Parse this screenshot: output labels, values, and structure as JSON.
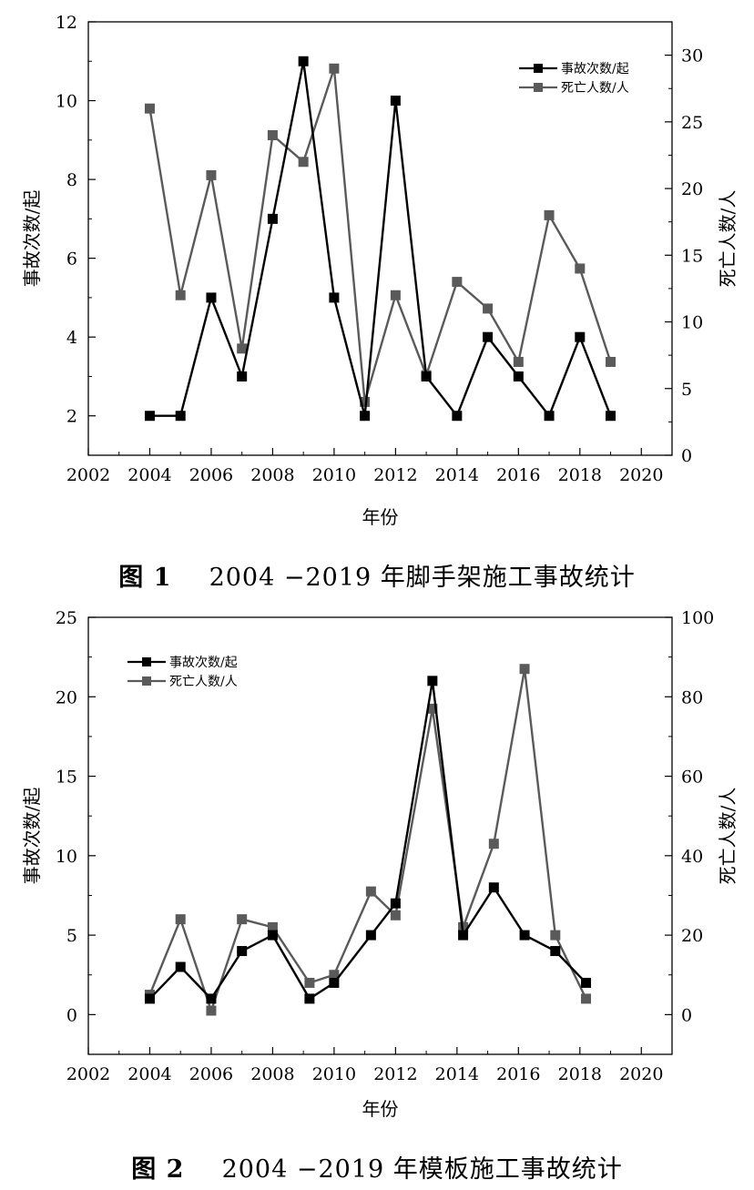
{
  "captions": [
    {
      "label": "图 1",
      "text": "2004 −2019 年脚手架施工事故统计"
    },
    {
      "label": "图 2",
      "text": "2004 −2019 年模板施工事故统计"
    }
  ],
  "chart_data": [
    {
      "type": "line",
      "xlabel": "年份",
      "ylabel": "事故次数/起",
      "y2label": "死亡人数/人",
      "xlim": [
        2002,
        2021
      ],
      "xticks": [
        2002,
        2004,
        2006,
        2008,
        2010,
        2012,
        2014,
        2016,
        2018,
        2020
      ],
      "ylim": [
        1,
        12
      ],
      "yticks": [
        2,
        4,
        6,
        8,
        10,
        12
      ],
      "y2lim": [
        0,
        32.5
      ],
      "y2ticks": [
        0,
        5,
        10,
        15,
        20,
        25,
        30
      ],
      "legend_position": "top-right",
      "series": [
        {
          "name": "事故次数/起",
          "axis": "left",
          "color": "#000000",
          "x": [
            2004,
            2005,
            2006,
            2007,
            2008,
            2009,
            2010,
            2011,
            2012,
            2013,
            2014,
            2015,
            2016,
            2017,
            2018,
            2019
          ],
          "y": [
            2,
            2,
            5,
            3,
            7,
            11,
            5,
            2,
            10,
            3,
            2,
            4,
            3,
            2,
            4,
            2
          ]
        },
        {
          "name": "死亡人数/人",
          "axis": "right",
          "color": "#5a5a5a",
          "x": [
            2004,
            2005,
            2006,
            2007,
            2008,
            2009,
            2010,
            2011,
            2012,
            2013,
            2014,
            2015,
            2016,
            2017,
            2018,
            2019
          ],
          "y": [
            26,
            12,
            21,
            8,
            24,
            22,
            29,
            4,
            12,
            6,
            13,
            11,
            7,
            18,
            14,
            7
          ]
        }
      ]
    },
    {
      "type": "line",
      "xlabel": "年份",
      "ylabel": "事故次数/起",
      "y2label": "死亡人数/人",
      "xlim": [
        2002,
        2021
      ],
      "xticks": [
        2002,
        2004,
        2006,
        2008,
        2010,
        2012,
        2014,
        2016,
        2018,
        2020
      ],
      "ylim": [
        -2.5,
        25
      ],
      "yticks": [
        0,
        5,
        10,
        15,
        20,
        25
      ],
      "y2lim": [
        -10,
        100
      ],
      "y2ticks": [
        0,
        20,
        40,
        60,
        80,
        100
      ],
      "legend_position": "top-left",
      "series": [
        {
          "name": "事故次数/起",
          "axis": "left",
          "color": "#000000",
          "x": [
            2004,
            2005,
            2006,
            2007,
            2008,
            2009.2,
            2010,
            2011.2,
            2012,
            2013.2,
            2014.2,
            2015.2,
            2016.2,
            2017.2,
            2018.2
          ],
          "y": [
            1,
            3,
            1,
            4,
            5,
            1,
            2,
            5,
            7,
            21,
            5,
            8,
            5,
            4,
            2
          ]
        },
        {
          "name": "死亡人数/人",
          "axis": "right",
          "color": "#5a5a5a",
          "x": [
            2004,
            2005,
            2006,
            2007,
            2008,
            2009.2,
            2010,
            2011.2,
            2012,
            2013.2,
            2014.2,
            2015.2,
            2016.2,
            2017.2,
            2018.2
          ],
          "y": [
            5,
            24,
            1,
            24,
            22,
            8,
            10,
            31,
            25,
            77,
            22,
            43,
            87,
            20,
            4
          ]
        }
      ]
    }
  ]
}
